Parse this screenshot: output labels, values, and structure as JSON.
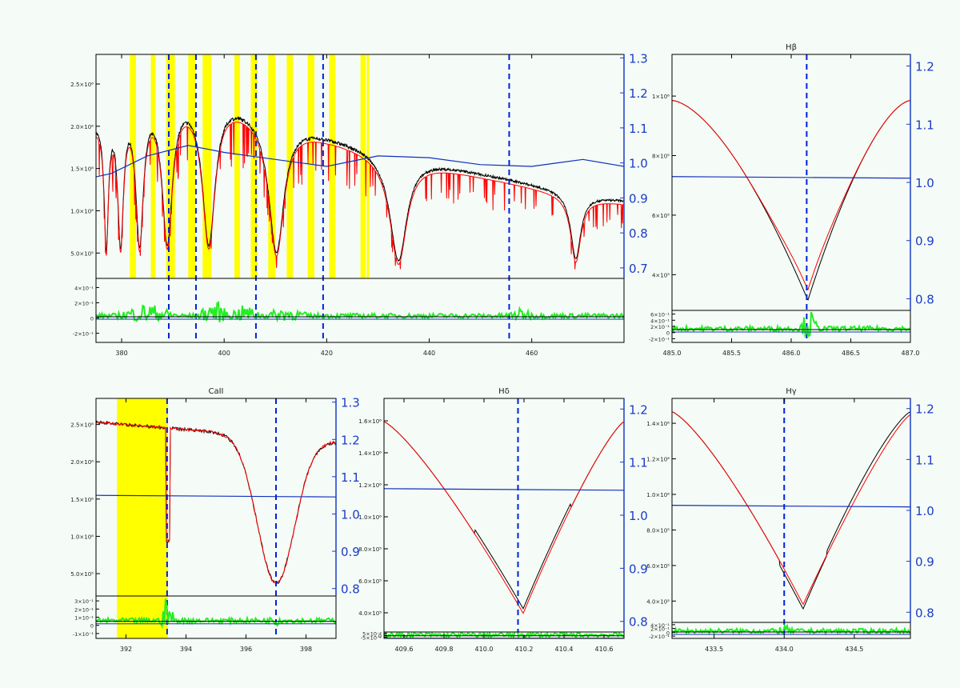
{
  "colors": {
    "background": "#f5fbf6",
    "observed": "#000000",
    "model": "#ff0000",
    "normalization": "#1030c0",
    "residual": "#22ee22",
    "mask": "#ffff00",
    "line_marker": "#0022dd",
    "right_axis": "#1a3cc8"
  },
  "chart_data": [
    {
      "type": "line",
      "panel": "overview",
      "title": "",
      "x_ticks": [
        "380",
        "400",
        "420",
        "440",
        "460"
      ],
      "xlim": [
        375,
        478
      ],
      "ylim": [
        300000.0,
        2750000.0
      ],
      "y_ticks": [
        "5.0×10⁵",
        "1.0×10⁶",
        "1.5×10⁶",
        "2.0×10⁶",
        "2.5×10⁶"
      ],
      "y2_ticks": [
        "0.7",
        "0.8",
        "0.9",
        "1.0",
        "1.1",
        "1.2",
        "1.3"
      ],
      "y2lim": [
        0.67,
        1.31
      ],
      "resid_ticks": [
        "4×10⁻¹",
        "2×10⁻¹",
        "0",
        "-2×10⁻¹"
      ],
      "resid_lim": [
        -0.32,
        0.45
      ],
      "continuum": {
        "x": [
          375,
          380,
          390,
          400,
          410,
          420,
          430,
          440,
          450,
          460,
          470,
          478
        ],
        "y": [
          2000000.0,
          2280000.0,
          2330000.0,
          2280000.0,
          2050000.0,
          1850000.0,
          1680000.0,
          1550000.0,
          1420000.0,
          1300000.0,
          1180000.0,
          1120000.0
        ]
      },
      "absorption_lines": [
        {
          "x": 377.0,
          "depth": 0.6,
          "width": 0.6
        },
        {
          "x": 379.8,
          "depth": 0.62,
          "width": 0.8
        },
        {
          "x": 383.5,
          "depth": 0.65,
          "width": 1.0
        },
        {
          "x": 388.9,
          "depth": 0.68,
          "width": 1.3
        },
        {
          "x": 397.0,
          "depth": 0.68,
          "width": 1.6
        },
        {
          "x": 410.2,
          "depth": 0.72,
          "width": 1.8
        },
        {
          "x": 434.0,
          "depth": 0.71,
          "width": 2.0
        },
        {
          "x": 447.1,
          "depth": 0.3,
          "width": 0.3
        },
        {
          "x": 486.1,
          "depth": 0.0,
          "width": 1.0
        }
      ],
      "hb_line": {
        "x": 468.6,
        "depth": 0.0
      },
      "normalization": {
        "x": [
          375,
          378,
          385,
          393,
          400,
          410,
          420,
          430,
          440,
          450,
          460,
          465,
          470,
          478
        ],
        "y": [
          0.96,
          0.97,
          1.02,
          1.05,
          1.03,
          1.01,
          0.99,
          1.02,
          1.015,
          0.995,
          0.99,
          1.0,
          1.01,
          0.99
        ]
      },
      "mask_bands": [
        [
          381.6,
          382.8
        ],
        [
          385.7,
          386.6
        ],
        [
          388.7,
          390.4
        ],
        [
          393.0,
          394.4
        ],
        [
          395.8,
          397.5
        ],
        [
          402.0,
          403.1
        ],
        [
          405.2,
          406.5
        ],
        [
          408.6,
          410.0
        ],
        [
          412.2,
          413.4
        ],
        [
          416.3,
          417.6
        ],
        [
          420.5,
          421.7
        ],
        [
          426.6,
          427.6
        ],
        [
          427.8,
          428.3
        ]
      ],
      "marker_lines": [
        389.2,
        394.5,
        406.2,
        419.3,
        455.6
      ]
    },
    {
      "type": "line",
      "panel": "hb",
      "title": "Hβ",
      "x_ticks": [
        "485.0",
        "485.5",
        "486.0",
        "486.5",
        "487.0"
      ],
      "xlim": [
        485.0,
        487.0
      ],
      "y_ticks": [
        "4×10⁵",
        "6×10⁵",
        "8×10⁵",
        "1×10⁶"
      ],
      "ylim": [
        350000.0,
        1100000.0
      ],
      "y2_ticks": [
        "0.8",
        "0.9",
        "1.0",
        "1.1",
        "1.2"
      ],
      "y2lim": [
        0.78,
        1.22
      ],
      "resid_ticks": [
        "6×10⁻¹",
        "4×10⁻¹",
        "2×10⁻¹",
        "0",
        "-2×10⁻¹"
      ],
      "center": 486.13,
      "edge_value": 1050000.0,
      "min_value": 370000.0,
      "normalization": 1.01
    },
    {
      "type": "line",
      "panel": "caii",
      "title": "CaII",
      "x_ticks": [
        "392",
        "394",
        "396",
        "398"
      ],
      "xlim": [
        391.0,
        399.0
      ],
      "y_ticks": [
        "5.0×10⁵",
        "1.0×10⁶",
        "1.5×10⁶",
        "2.0×10⁶",
        "2.5×10⁶"
      ],
      "ylim": [
        300000.0,
        2750000.0
      ],
      "y2_ticks": [
        "0.8",
        "0.9",
        "1.0",
        "1.1",
        "1.2",
        "1.3"
      ],
      "y2lim": [
        0.78,
        1.31
      ],
      "resid_ticks": [
        "3×10⁻¹",
        "2×10⁻¹",
        "1×10⁻¹",
        "0",
        "-1×10⁻¹"
      ],
      "mask_band": [
        391.7,
        393.4
      ],
      "marker_lines": [
        393.37,
        397.0
      ],
      "normalization": 1.05
    },
    {
      "type": "line",
      "panel": "hd",
      "title": "Hδ",
      "x_ticks": [
        "409.6",
        "409.8",
        "410.0",
        "410.2",
        "410.4",
        "410.6"
      ],
      "xlim": [
        409.5,
        410.7
      ],
      "y_ticks": [
        "4.0×10⁵",
        "6.0×10⁵",
        "8.0×10⁵",
        "1.0×10⁶",
        "1.2×10⁶",
        "1.4×10⁶",
        "1.6×10⁶"
      ],
      "ylim": [
        350000.0,
        1700000.0
      ],
      "y2_ticks": [
        "0.8",
        "0.9",
        "1.0",
        "1.1",
        "1.2"
      ],
      "y2lim": [
        0.78,
        1.22
      ],
      "resid_ticks": [
        "5×10⁻²",
        "0",
        "-5×10⁻²"
      ],
      "center": 410.17,
      "normalization": 1.05
    },
    {
      "type": "line",
      "panel": "hg",
      "title": "Hγ",
      "x_ticks": [
        "433.5",
        "434.0",
        "434.5"
      ],
      "xlim": [
        433.2,
        434.9
      ],
      "y_ticks": [
        "4.0×10⁵",
        "6.0×10⁵",
        "8.0×10⁵",
        "1.0×10⁶",
        "1.2×10⁶",
        "1.4×10⁶"
      ],
      "ylim": [
        350000.0,
        1450000.0
      ],
      "y2_ticks": [
        "0.8",
        "0.9",
        "1.0",
        "1.1",
        "1.2"
      ],
      "y2lim": [
        0.78,
        1.22
      ],
      "resid_ticks": [
        "4×10⁻¹",
        "2×10⁻¹",
        "0",
        "-2×10⁻¹"
      ],
      "center": 434.0,
      "normalization": 1.01
    }
  ]
}
